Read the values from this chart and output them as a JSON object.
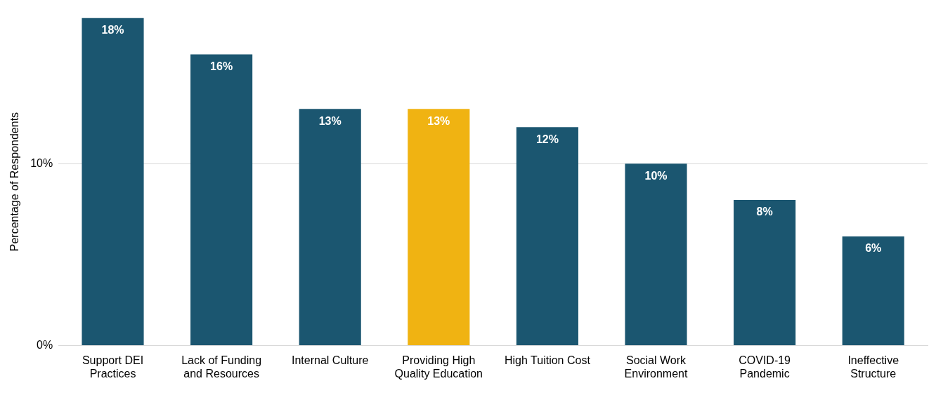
{
  "chart_data": {
    "type": "bar",
    "ylabel": "Percentage of Respondents",
    "categories": [
      "Support DEI Practices",
      "Lack of Funding and Resources",
      "Internal Culture",
      "Providing High Quality Education",
      "High Tuition Cost",
      "Social Work Environment",
      "COVID-19 Pandemic",
      "Ineffective Structure"
    ],
    "values": [
      18,
      16,
      13,
      13,
      12,
      10,
      8,
      6
    ],
    "colors": [
      "#1b5670",
      "#1b5670",
      "#1b5670",
      "#f0b312",
      "#1b5670",
      "#1b5670",
      "#1b5670",
      "#1b5670"
    ],
    "ylim": [
      0,
      18
    ],
    "yticks": [
      {
        "value": 0,
        "label": "0%"
      },
      {
        "value": 10,
        "label": "10%"
      }
    ],
    "value_labels": [
      "18%",
      "16%",
      "13%",
      "13%",
      "12%",
      "10%",
      "8%",
      "6%"
    ],
    "grid": "y",
    "legend": false
  }
}
